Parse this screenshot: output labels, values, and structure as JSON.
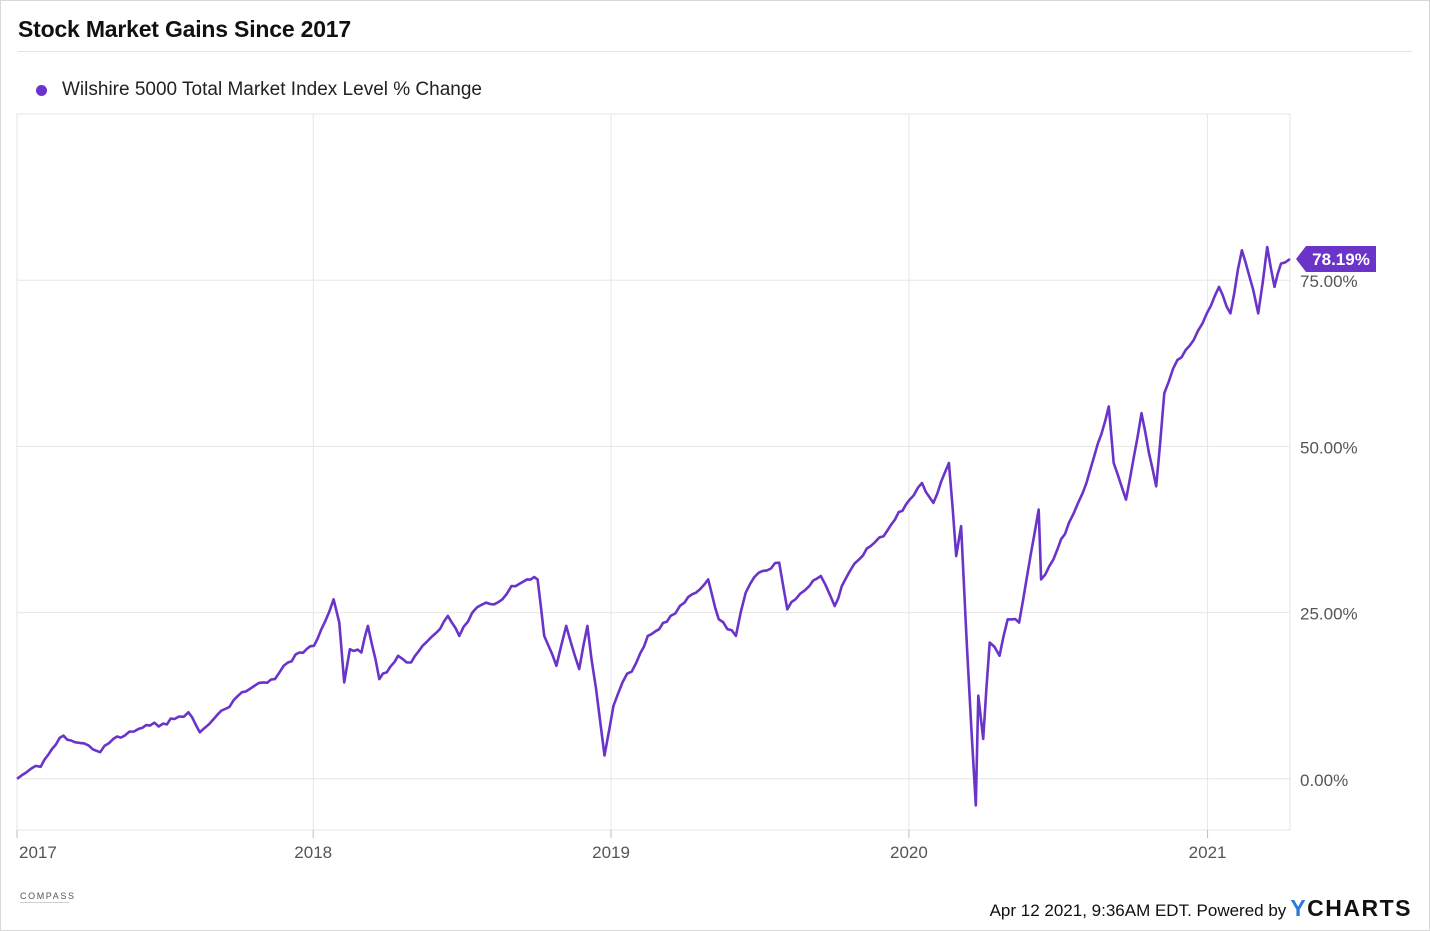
{
  "title": "Stock Market Gains Since 2017",
  "legend": {
    "label": "Wilshire 5000 Total Market Index Level % Change"
  },
  "colors": {
    "series": "#6a34c9",
    "grid": "#e6e6e6",
    "tick_text": "#555555",
    "badge_text": "#ffffff"
  },
  "footer": {
    "timestamp": "Apr 12 2021, 9:36AM EDT. Powered by",
    "brand_y": "Y",
    "brand_rest": "CHARTS"
  },
  "logo": {
    "name": "COMPASS"
  },
  "chart_data": {
    "type": "line",
    "title": "Stock Market Gains Since 2017",
    "xlabel": "",
    "ylabel": "",
    "x_ticks": [
      "2017",
      "2018",
      "2019",
      "2020",
      "2021"
    ],
    "y_ticks": [
      "0.00%",
      "25.00%",
      "50.00%",
      "75.00%"
    ],
    "y_tick_values": [
      0,
      25,
      50,
      75
    ],
    "ylim": [
      -7.7,
      100
    ],
    "xlim": [
      "2017-01-03",
      "2021-04-12"
    ],
    "grid": true,
    "legend_position": "top-left",
    "last_value_label": "78.19%",
    "series": [
      {
        "name": "Wilshire 5000 Total Market Index Level % Change",
        "points": [
          [
            "2017-01-03",
            0.0
          ],
          [
            "2017-01-20",
            1.5
          ],
          [
            "2017-02-01",
            1.8
          ],
          [
            "2017-02-15",
            4.5
          ],
          [
            "2017-03-01",
            6.5
          ],
          [
            "2017-03-15",
            5.5
          ],
          [
            "2017-04-01",
            5.0
          ],
          [
            "2017-04-15",
            4.0
          ],
          [
            "2017-05-01",
            6.0
          ],
          [
            "2017-05-15",
            6.5
          ],
          [
            "2017-06-01",
            7.5
          ],
          [
            "2017-06-15",
            8.0
          ],
          [
            "2017-07-01",
            8.3
          ],
          [
            "2017-07-15",
            9.0
          ],
          [
            "2017-08-01",
            10.0
          ],
          [
            "2017-08-15",
            7.0
          ],
          [
            "2017-09-01",
            9.0
          ],
          [
            "2017-09-15",
            10.5
          ],
          [
            "2017-10-01",
            12.5
          ],
          [
            "2017-10-15",
            13.5
          ],
          [
            "2017-11-01",
            14.5
          ],
          [
            "2017-11-15",
            15.0
          ],
          [
            "2017-12-01",
            17.5
          ],
          [
            "2017-12-15",
            19.0
          ],
          [
            "2018-01-02",
            20.0
          ],
          [
            "2018-01-15",
            23.5
          ],
          [
            "2018-01-26",
            27.0
          ],
          [
            "2018-02-02",
            23.5
          ],
          [
            "2018-02-08",
            14.5
          ],
          [
            "2018-02-15",
            19.5
          ],
          [
            "2018-03-01",
            19.0
          ],
          [
            "2018-03-09",
            23.0
          ],
          [
            "2018-03-23",
            15.0
          ],
          [
            "2018-04-01",
            16.0
          ],
          [
            "2018-04-15",
            18.5
          ],
          [
            "2018-05-01",
            17.5
          ],
          [
            "2018-05-15",
            20.0
          ],
          [
            "2018-06-01",
            22.0
          ],
          [
            "2018-06-15",
            24.5
          ],
          [
            "2018-06-29",
            21.5
          ],
          [
            "2018-07-15",
            25.0
          ],
          [
            "2018-08-01",
            26.5
          ],
          [
            "2018-08-15",
            26.5
          ],
          [
            "2018-09-01",
            29.0
          ],
          [
            "2018-09-20",
            30.0
          ],
          [
            "2018-10-03",
            30.0
          ],
          [
            "2018-10-11",
            21.5
          ],
          [
            "2018-10-26",
            17.0
          ],
          [
            "2018-11-07",
            23.0
          ],
          [
            "2018-11-23",
            16.5
          ],
          [
            "2018-12-03",
            23.0
          ],
          [
            "2018-12-24",
            3.5
          ],
          [
            "2019-01-04",
            11.0
          ],
          [
            "2019-01-15",
            14.5
          ],
          [
            "2019-02-01",
            17.5
          ],
          [
            "2019-02-15",
            21.5
          ],
          [
            "2019-03-01",
            22.5
          ],
          [
            "2019-03-15",
            24.5
          ],
          [
            "2019-04-01",
            26.5
          ],
          [
            "2019-04-15",
            28.0
          ],
          [
            "2019-04-30",
            30.0
          ],
          [
            "2019-05-13",
            24.0
          ],
          [
            "2019-06-03",
            21.5
          ],
          [
            "2019-06-15",
            28.0
          ],
          [
            "2019-07-01",
            31.0
          ],
          [
            "2019-07-26",
            32.5
          ],
          [
            "2019-08-05",
            25.5
          ],
          [
            "2019-08-15",
            27.0
          ],
          [
            "2019-09-01",
            29.0
          ],
          [
            "2019-09-15",
            30.5
          ],
          [
            "2019-10-02",
            26.0
          ],
          [
            "2019-10-15",
            30.0
          ],
          [
            "2019-11-01",
            33.0
          ],
          [
            "2019-11-15",
            35.0
          ],
          [
            "2019-12-01",
            36.5
          ],
          [
            "2019-12-15",
            39.0
          ],
          [
            "2020-01-02",
            42.0
          ],
          [
            "2020-01-17",
            44.5
          ],
          [
            "2020-01-31",
            41.5
          ],
          [
            "2020-02-19",
            47.5
          ],
          [
            "2020-02-28",
            33.5
          ],
          [
            "2020-03-05",
            38.0
          ],
          [
            "2020-03-12",
            20.0
          ],
          [
            "2020-03-23",
            -4.0
          ],
          [
            "2020-03-26",
            12.5
          ],
          [
            "2020-04-01",
            6.0
          ],
          [
            "2020-04-09",
            20.5
          ],
          [
            "2020-04-21",
            18.5
          ],
          [
            "2020-05-01",
            24.0
          ],
          [
            "2020-05-15",
            23.5
          ],
          [
            "2020-06-08",
            40.5
          ],
          [
            "2020-06-11",
            30.0
          ],
          [
            "2020-06-26",
            33.0
          ],
          [
            "2020-07-15",
            38.5
          ],
          [
            "2020-08-01",
            43.0
          ],
          [
            "2020-08-15",
            48.5
          ],
          [
            "2020-09-02",
            56.0
          ],
          [
            "2020-09-08",
            47.5
          ],
          [
            "2020-09-23",
            42.0
          ],
          [
            "2020-10-12",
            55.0
          ],
          [
            "2020-10-30",
            44.0
          ],
          [
            "2020-11-09",
            58.0
          ],
          [
            "2020-11-25",
            63.0
          ],
          [
            "2020-12-15",
            66.0
          ],
          [
            "2020-12-31",
            70.0
          ],
          [
            "2021-01-15",
            74.0
          ],
          [
            "2021-01-29",
            70.0
          ],
          [
            "2021-02-12",
            79.5
          ],
          [
            "2021-02-26",
            73.5
          ],
          [
            "2021-03-04",
            70.0
          ],
          [
            "2021-03-15",
            80.0
          ],
          [
            "2021-03-24",
            74.0
          ],
          [
            "2021-04-01",
            77.5
          ],
          [
            "2021-04-12",
            78.19
          ]
        ]
      }
    ]
  }
}
